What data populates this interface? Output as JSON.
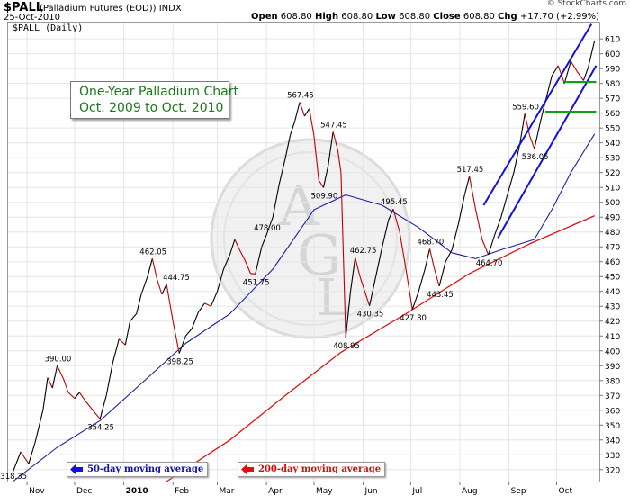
{
  "header": {
    "symbol": "$PALL",
    "description": "(Palladium Futures (EOD))",
    "exchange": "INDX",
    "date": "25-Oct-2010",
    "copyright": "© StockCharts.com",
    "open_label": "Open",
    "open": "608.80",
    "high_label": "High",
    "high": "608.80",
    "low_label": "Low",
    "low": "608.80",
    "close_label": "Close",
    "close": "608.80",
    "chg_label": "Chg",
    "chg": "+17.70 (+2.99%)"
  },
  "panel_label": "$PALL (Daily)",
  "annotation": {
    "title": "One-Year Palladium Chart",
    "subtitle": "Oct. 2009 to Oct. 2010"
  },
  "legend": {
    "ma50": "50-day moving average",
    "ma200": "200-day moving average"
  },
  "colors": {
    "price": "#000000",
    "price_down": "#c00000",
    "ma50": "#2020a0",
    "ma200": "#e01010",
    "trend_channel": "#1010e0",
    "support": "#10a010",
    "grid": "#e6e6e6"
  },
  "chart_data": {
    "type": "line",
    "title": "",
    "x_ticks": [
      "Nov",
      "Dec",
      "2010",
      "Feb",
      "Mar",
      "Apr",
      "May",
      "Jun",
      "Jul",
      "Aug",
      "Sep",
      "Oct"
    ],
    "y_ticks": [
      320,
      330,
      340,
      350,
      360,
      370,
      380,
      390,
      400,
      410,
      420,
      430,
      440,
      450,
      460,
      470,
      480,
      490,
      500,
      510,
      520,
      530,
      540,
      550,
      560,
      570,
      580,
      590,
      600,
      610
    ],
    "ylim": [
      312,
      621
    ],
    "grid": true,
    "price_points": [
      [
        "Oct 23, 2009",
        318.35
      ],
      [
        "Oct 28, 2009",
        332
      ],
      [
        "Nov 2, 2009",
        324
      ],
      [
        "Nov 6, 2009",
        338
      ],
      [
        "Nov 11, 2009",
        360
      ],
      [
        "Nov 14, 2009",
        382
      ],
      [
        "Nov 17, 2009",
        375
      ],
      [
        "Nov 20, 2009",
        390.0
      ],
      [
        "Nov 24, 2009",
        381
      ],
      [
        "Nov 27, 2009",
        372
      ],
      [
        "Dec 1, 2009",
        368
      ],
      [
        "Dec 4, 2009",
        372
      ],
      [
        "Dec 8, 2009",
        366
      ],
      [
        "Dec 11, 2009",
        362
      ],
      [
        "Dec 14, 2009",
        358
      ],
      [
        "Dec 17, 2009",
        354.25
      ],
      [
        "Dec 21, 2009",
        370
      ],
      [
        "Dec 25, 2009",
        392
      ],
      [
        "Dec 29, 2009",
        408
      ],
      [
        "Jan 2, 2010",
        404
      ],
      [
        "Jan 5, 2010",
        420
      ],
      [
        "Jan 9, 2010",
        425
      ],
      [
        "Jan 12, 2010",
        438
      ],
      [
        "Jan 16, 2010",
        450
      ],
      [
        "Jan 19, 2010",
        462.05
      ],
      [
        "Jan 22, 2010",
        448
      ],
      [
        "Jan 25, 2010",
        438
      ],
      [
        "Jan 28, 2010",
        444.75
      ],
      [
        "Feb 1, 2010",
        420
      ],
      [
        "Feb 5, 2010",
        398.25
      ],
      [
        "Feb 9, 2010",
        410
      ],
      [
        "Feb 13, 2010",
        415
      ],
      [
        "Feb 17, 2010",
        426
      ],
      [
        "Feb 21, 2010",
        432
      ],
      [
        "Feb 25, 2010",
        430
      ],
      [
        "Mar 1, 2010",
        440
      ],
      [
        "Mar 5, 2010",
        455
      ],
      [
        "Mar 9, 2010",
        465
      ],
      [
        "Mar 12, 2010",
        475
      ],
      [
        "Mar 15, 2010",
        468
      ],
      [
        "Mar 18, 2010",
        462
      ],
      [
        "Mar 22, 2010",
        452
      ],
      [
        "Mar 25, 2010",
        451.75
      ],
      [
        "Mar 29, 2010",
        470
      ],
      [
        "Apr 1, 2010",
        478.0
      ],
      [
        "Apr 5, 2010",
        490
      ],
      [
        "Apr 9, 2010",
        512
      ],
      [
        "Apr 13, 2010",
        530
      ],
      [
        "Apr 16, 2010",
        545
      ],
      [
        "Apr 19, 2010",
        555
      ],
      [
        "Apr 22, 2010",
        567.45
      ],
      [
        "Apr 25, 2010",
        558
      ],
      [
        "Apr 28, 2010",
        563
      ],
      [
        "May 1, 2010",
        545
      ],
      [
        "May 4, 2010",
        515
      ],
      [
        "May 7, 2010",
        509.9
      ],
      [
        "May 10, 2010",
        525
      ],
      [
        "May 13, 2010",
        547.45
      ],
      [
        "May 16, 2010",
        535
      ],
      [
        "May 18, 2010",
        520
      ],
      [
        "May 21, 2010",
        408.95
      ],
      [
        "May 24, 2010",
        440
      ],
      [
        "May 27, 2010",
        462.75
      ],
      [
        "May 30, 2010",
        450
      ],
      [
        "Jun 2, 2010",
        440
      ],
      [
        "Jun 5, 2010",
        430.35
      ],
      [
        "Jun 9, 2010",
        450
      ],
      [
        "Jun 13, 2010",
        470
      ],
      [
        "Jun 17, 2010",
        488
      ],
      [
        "Jun 20, 2010",
        495.45
      ],
      [
        "Jun 24, 2010",
        480
      ],
      [
        "Jun 28, 2010",
        455
      ],
      [
        "Jul 2, 2010",
        427.8
      ],
      [
        "Jul 6, 2010",
        440
      ],
      [
        "Jul 10, 2010",
        455
      ],
      [
        "Jul 13, 2010",
        468.7
      ],
      [
        "Jul 16, 2010",
        455
      ],
      [
        "Jul 19, 2010",
        443.45
      ],
      [
        "Jul 23, 2010",
        460
      ],
      [
        "Jul 27, 2010",
        468
      ],
      [
        "Jul 31, 2010",
        485
      ],
      [
        "Aug 4, 2010",
        505
      ],
      [
        "Aug 7, 2010",
        517.45
      ],
      [
        "Aug 11, 2010",
        495
      ],
      [
        "Aug 15, 2010",
        475
      ],
      [
        "Aug 19, 2010",
        464.7
      ],
      [
        "Aug 23, 2010",
        478
      ],
      [
        "Aug 27, 2010",
        490
      ],
      [
        "Aug 31, 2010",
        505
      ],
      [
        "Sep 4, 2010",
        520
      ],
      [
        "Sep 8, 2010",
        540
      ],
      [
        "Sep 11, 2010",
        559.6
      ],
      [
        "Sep 14, 2010",
        545
      ],
      [
        "Sep 17, 2010",
        536.05
      ],
      [
        "Sep 21, 2010",
        555
      ],
      [
        "Sep 24, 2010",
        568
      ],
      [
        "Sep 28, 2010",
        585
      ],
      [
        "Oct 2, 2010",
        592
      ],
      [
        "Oct 6, 2010",
        580
      ],
      [
        "Oct 10, 2010",
        595
      ],
      [
        "Oct 14, 2010",
        588
      ],
      [
        "Oct 18, 2010",
        582
      ],
      [
        "Oct 21, 2010",
        591
      ],
      [
        "Oct 25, 2010",
        608.8
      ]
    ],
    "ma50_points": [
      [
        "Oct 23, 2009",
        312
      ],
      [
        "Nov 20, 2009",
        335
      ],
      [
        "Dec 17, 2009",
        353
      ],
      [
        "Jan 12, 2010",
        378
      ],
      [
        "Feb 9, 2010",
        405
      ],
      [
        "Mar 9, 2010",
        425
      ],
      [
        "Apr 5, 2010",
        455
      ],
      [
        "May 1, 2010",
        495
      ],
      [
        "May 21, 2010",
        505
      ],
      [
        "Jun 13, 2010",
        498
      ],
      [
        "Jul 6, 2010",
        483
      ],
      [
        "Jul 27, 2010",
        466
      ],
      [
        "Aug 11, 2010",
        462
      ],
      [
        "Aug 27, 2010",
        468
      ],
      [
        "Sep 17, 2010",
        475
      ],
      [
        "Sep 28, 2010",
        495
      ],
      [
        "Oct 10, 2010",
        520
      ],
      [
        "Oct 25, 2010",
        546
      ]
    ],
    "ma200_points": [
      [
        "Jan 28, 2010",
        312
      ],
      [
        "Mar 9, 2010",
        340
      ],
      [
        "Apr 13, 2010",
        370
      ],
      [
        "May 18, 2010",
        399
      ],
      [
        "Jun 28, 2010",
        425
      ],
      [
        "Aug 7, 2010",
        452
      ],
      [
        "Sep 14, 2010",
        472
      ],
      [
        "Oct 25, 2010",
        491
      ]
    ],
    "data_labels": [
      {
        "date": "Oct 23, 2009",
        "value": 318.35,
        "text": "318.35"
      },
      {
        "date": "Nov 20, 2009",
        "value": 390.0,
        "text": "390.00"
      },
      {
        "date": "Dec 17, 2009",
        "value": 354.25,
        "text": "354.25"
      },
      {
        "date": "Jan 19, 2010",
        "value": 462.05,
        "text": "462.05"
      },
      {
        "date": "Jan 28, 2010",
        "value": 444.75,
        "text": "444.75"
      },
      {
        "date": "Feb 5, 2010",
        "value": 398.25,
        "text": "398.25"
      },
      {
        "date": "Mar 25, 2010",
        "value": 451.75,
        "text": "451.75"
      },
      {
        "date": "Apr 1, 2010",
        "value": 478.0,
        "text": "478.00"
      },
      {
        "date": "Apr 22, 2010",
        "value": 567.45,
        "text": "567.45"
      },
      {
        "date": "May 7, 2010",
        "value": 509.9,
        "text": "509.90"
      },
      {
        "date": "May 13, 2010",
        "value": 547.45,
        "text": "547.45"
      },
      {
        "date": "May 21, 2010",
        "value": 408.95,
        "text": "408.95"
      },
      {
        "date": "May 27, 2010",
        "value": 462.75,
        "text": "462.75"
      },
      {
        "date": "Jun 5, 2010",
        "value": 430.35,
        "text": "430.35"
      },
      {
        "date": "Jun 20, 2010",
        "value": 495.45,
        "text": "495.45"
      },
      {
        "date": "Jul 2, 2010",
        "value": 427.8,
        "text": "427.80"
      },
      {
        "date": "Jul 13, 2010",
        "value": 468.7,
        "text": "468.70"
      },
      {
        "date": "Jul 19, 2010",
        "value": 443.45,
        "text": "443.45"
      },
      {
        "date": "Aug 7, 2010",
        "value": 517.45,
        "text": "517.45"
      },
      {
        "date": "Aug 19, 2010",
        "value": 464.7,
        "text": "464.70"
      },
      {
        "date": "Sep 11, 2010",
        "value": 559.6,
        "text": "559.60"
      },
      {
        "date": "Sep 17, 2010",
        "value": 536.05,
        "text": "536.05"
      }
    ],
    "trend_channel": [
      {
        "from": [
          "Aug 16, 2010",
          498
        ],
        "to": [
          "Oct 23, 2010",
          620
        ]
      },
      {
        "from": [
          "Aug 25, 2010",
          476
        ],
        "to": [
          "Oct 26, 2010",
          592
        ]
      }
    ],
    "support_lines": [
      {
        "value": 581,
        "from": "Oct 6, 2010",
        "to": "Oct 26, 2010"
      },
      {
        "value": 561,
        "from": "Sep 24, 2010",
        "to": "Oct 26, 2010"
      }
    ]
  }
}
